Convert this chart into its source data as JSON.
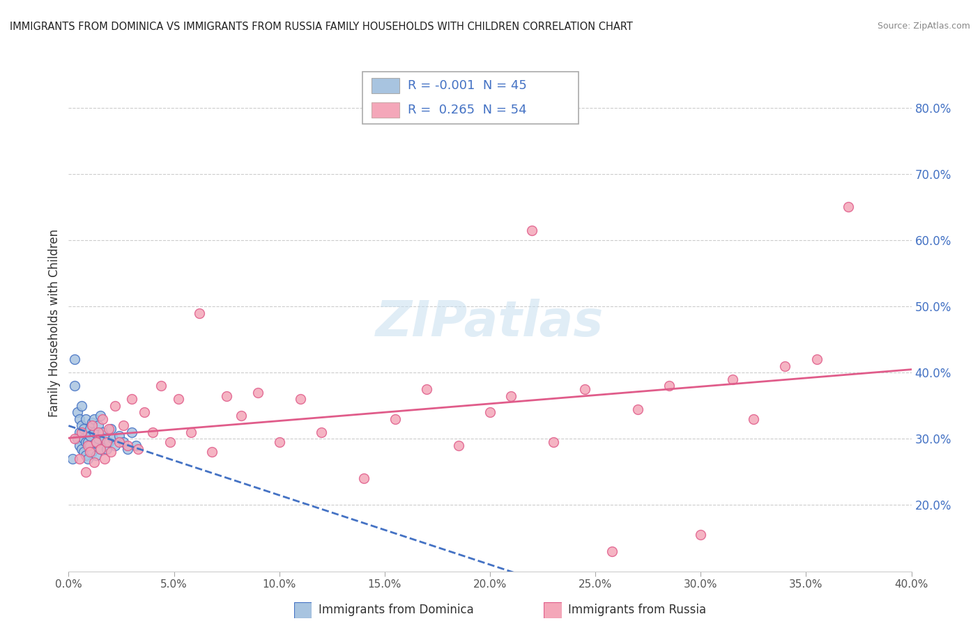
{
  "title": "IMMIGRANTS FROM DOMINICA VS IMMIGRANTS FROM RUSSIA FAMILY HOUSEHOLDS WITH CHILDREN CORRELATION CHART",
  "source": "Source: ZipAtlas.com",
  "ylabel": "Family Households with Children",
  "xlabel_dominica": "Immigrants from Dominica",
  "xlabel_russia": "Immigrants from Russia",
  "xmin": 0.0,
  "xmax": 0.4,
  "ymin": 0.1,
  "ymax": 0.85,
  "yticks": [
    0.2,
    0.3,
    0.4,
    0.5,
    0.6,
    0.7,
    0.8
  ],
  "ytick_labels": [
    "20.0%",
    "30.0%",
    "40.0%",
    "50.0%",
    "60.0%",
    "70.0%",
    "80.0%"
  ],
  "xticks": [
    0.0,
    0.05,
    0.1,
    0.15,
    0.2,
    0.25,
    0.3,
    0.35,
    0.4
  ],
  "xtick_labels": [
    "0.0%",
    "5.0%",
    "10.0%",
    "15.0%",
    "20.0%",
    "25.0%",
    "30.0%",
    "35.0%",
    "40.0%"
  ],
  "legend_r_dominica": "-0.001",
  "legend_n_dominica": "45",
  "legend_r_russia": "0.265",
  "legend_n_russia": "54",
  "color_dominica": "#a8c4e0",
  "color_russia": "#f4a7b9",
  "line_color_dominica": "#4472c4",
  "line_color_russia": "#e05c8a",
  "dominica_x": [
    0.002,
    0.003,
    0.003,
    0.004,
    0.004,
    0.005,
    0.005,
    0.005,
    0.006,
    0.006,
    0.006,
    0.007,
    0.007,
    0.007,
    0.008,
    0.008,
    0.008,
    0.009,
    0.009,
    0.009,
    0.01,
    0.01,
    0.01,
    0.011,
    0.011,
    0.012,
    0.012,
    0.013,
    0.013,
    0.014,
    0.014,
    0.015,
    0.015,
    0.016,
    0.017,
    0.018,
    0.019,
    0.02,
    0.021,
    0.022,
    0.024,
    0.026,
    0.028,
    0.03,
    0.032
  ],
  "dominica_y": [
    0.27,
    0.38,
    0.42,
    0.3,
    0.34,
    0.29,
    0.33,
    0.31,
    0.285,
    0.32,
    0.35,
    0.3,
    0.28,
    0.315,
    0.295,
    0.33,
    0.275,
    0.31,
    0.295,
    0.27,
    0.315,
    0.29,
    0.305,
    0.325,
    0.28,
    0.31,
    0.33,
    0.295,
    0.275,
    0.32,
    0.3,
    0.335,
    0.285,
    0.31,
    0.3,
    0.285,
    0.295,
    0.315,
    0.3,
    0.29,
    0.305,
    0.295,
    0.285,
    0.31,
    0.29
  ],
  "russia_x": [
    0.003,
    0.005,
    0.006,
    0.008,
    0.009,
    0.01,
    0.011,
    0.012,
    0.013,
    0.014,
    0.015,
    0.016,
    0.017,
    0.018,
    0.019,
    0.02,
    0.022,
    0.024,
    0.026,
    0.028,
    0.03,
    0.033,
    0.036,
    0.04,
    0.044,
    0.048,
    0.052,
    0.058,
    0.062,
    0.068,
    0.075,
    0.082,
    0.09,
    0.1,
    0.11,
    0.12,
    0.14,
    0.155,
    0.17,
    0.185,
    0.2,
    0.21,
    0.22,
    0.23,
    0.245,
    0.258,
    0.27,
    0.285,
    0.3,
    0.315,
    0.325,
    0.34,
    0.355,
    0.37
  ],
  "russia_y": [
    0.3,
    0.27,
    0.31,
    0.25,
    0.29,
    0.28,
    0.32,
    0.265,
    0.295,
    0.31,
    0.285,
    0.33,
    0.27,
    0.295,
    0.315,
    0.28,
    0.35,
    0.295,
    0.32,
    0.29,
    0.36,
    0.285,
    0.34,
    0.31,
    0.38,
    0.295,
    0.36,
    0.31,
    0.49,
    0.28,
    0.365,
    0.335,
    0.37,
    0.295,
    0.36,
    0.31,
    0.24,
    0.33,
    0.375,
    0.29,
    0.34,
    0.365,
    0.615,
    0.295,
    0.375,
    0.13,
    0.345,
    0.38,
    0.155,
    0.39,
    0.33,
    0.41,
    0.42,
    0.65
  ]
}
